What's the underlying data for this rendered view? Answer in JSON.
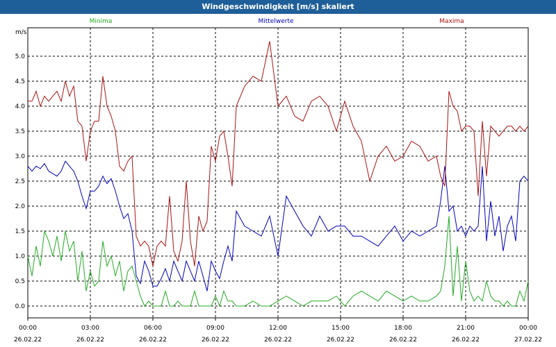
{
  "window": {
    "title": "Windgeschwindigkeit [m/s] skaliert"
  },
  "chart_data": {
    "type": "line",
    "title": "Windgeschwindigkeit [m/s] skaliert",
    "ylabel": "m/s",
    "xlabel": "",
    "ylim": [
      0,
      5.5
    ],
    "grid": true,
    "yticks": [
      "0.0",
      "0.5",
      "1.0",
      "1.5",
      "2.0",
      "2.5",
      "3.0",
      "3.5",
      "4.0",
      "4.5",
      "5.0"
    ],
    "xticks": [
      {
        "time": "00:00",
        "date": "26.02.22"
      },
      {
        "time": "03:00",
        "date": "26.02.22"
      },
      {
        "time": "06:00",
        "date": "26.02.22"
      },
      {
        "time": "09:00",
        "date": "26.02.22"
      },
      {
        "time": "12:00",
        "date": "26.02.22"
      },
      {
        "time": "15:00",
        "date": "26.02.22"
      },
      {
        "time": "18:00",
        "date": "26.02.22"
      },
      {
        "time": "21:00",
        "date": "26.02.22"
      },
      {
        "time": "00:00",
        "date": "27.02.22"
      }
    ],
    "x_hours_range": [
      0,
      24
    ],
    "legend_position": "top",
    "series": [
      {
        "name": "Minima",
        "color": "#22aa22",
        "x": [
          0,
          0.2,
          0.4,
          0.6,
          0.8,
          1.0,
          1.2,
          1.4,
          1.6,
          1.8,
          2.0,
          2.2,
          2.4,
          2.6,
          2.8,
          3.0,
          3.2,
          3.4,
          3.6,
          3.8,
          4.0,
          4.2,
          4.4,
          4.6,
          4.8,
          5.0,
          5.2,
          5.4,
          5.6,
          5.8,
          6.0,
          6.2,
          6.4,
          6.6,
          6.8,
          7.0,
          7.2,
          7.4,
          7.6,
          7.8,
          8.0,
          8.2,
          8.4,
          8.6,
          8.8,
          9.0,
          9.2,
          9.4,
          9.6,
          9.8,
          10.0,
          10.4,
          10.8,
          11.2,
          11.6,
          12.0,
          12.4,
          12.8,
          13.2,
          13.6,
          14.0,
          14.4,
          14.8,
          15.2,
          15.6,
          16.0,
          16.4,
          16.8,
          17.2,
          17.6,
          18.0,
          18.4,
          18.8,
          19.2,
          19.6,
          19.8,
          20.0,
          20.2,
          20.4,
          20.6,
          20.8,
          21.0,
          21.2,
          21.4,
          21.6,
          21.8,
          22.0,
          22.2,
          22.4,
          22.6,
          22.8,
          23.0,
          23.2,
          23.4,
          23.6,
          23.8,
          24.0
        ],
        "values": [
          1.0,
          0.6,
          1.2,
          0.8,
          1.5,
          1.3,
          1.0,
          1.4,
          0.9,
          1.5,
          1.1,
          1.3,
          0.5,
          1.1,
          0.3,
          0.7,
          0.4,
          0.5,
          1.3,
          0.8,
          1.0,
          0.6,
          0.9,
          0.3,
          0.7,
          0.8,
          0.5,
          0.2,
          0.0,
          0.1,
          0.0,
          0.0,
          0.0,
          0.3,
          0.0,
          0.0,
          0.1,
          0.0,
          0.0,
          0.0,
          0.3,
          0.0,
          0.0,
          0.0,
          0.0,
          0.2,
          0.0,
          0.3,
          0.1,
          0.1,
          0.0,
          0.0,
          0.1,
          0.0,
          0.0,
          0.1,
          0.2,
          0.1,
          0.0,
          0.1,
          0.1,
          0.1,
          0.2,
          0.0,
          0.2,
          0.3,
          0.2,
          0.1,
          0.3,
          0.2,
          0.1,
          0.2,
          0.1,
          0.1,
          0.2,
          0.3,
          0.8,
          1.8,
          0.2,
          1.2,
          0.1,
          0.9,
          0.3,
          0.1,
          0.2,
          0.1,
          0.5,
          0.2,
          0.1,
          0.1,
          0.0,
          0.1,
          0.0,
          0.0,
          0.3,
          0.1,
          0.5
        ]
      },
      {
        "name": "Mittelwerte",
        "color": "#0000bb",
        "x": [
          0,
          0.2,
          0.4,
          0.6,
          0.8,
          1.0,
          1.2,
          1.4,
          1.6,
          1.8,
          2.0,
          2.2,
          2.4,
          2.6,
          2.8,
          3.0,
          3.2,
          3.4,
          3.6,
          3.8,
          4.0,
          4.2,
          4.4,
          4.6,
          4.8,
          5.0,
          5.2,
          5.4,
          5.6,
          5.8,
          6.0,
          6.2,
          6.4,
          6.6,
          6.8,
          7.0,
          7.2,
          7.4,
          7.6,
          7.8,
          8.0,
          8.2,
          8.4,
          8.6,
          8.8,
          9.0,
          9.2,
          9.4,
          9.6,
          9.8,
          10.0,
          10.4,
          10.8,
          11.2,
          11.6,
          12.0,
          12.4,
          12.8,
          13.2,
          13.6,
          14.0,
          14.4,
          14.8,
          15.2,
          15.6,
          16.0,
          16.4,
          16.8,
          17.2,
          17.6,
          18.0,
          18.4,
          18.8,
          19.2,
          19.6,
          19.8,
          20.0,
          20.2,
          20.4,
          20.6,
          20.8,
          21.0,
          21.2,
          21.4,
          21.6,
          21.8,
          22.0,
          22.2,
          22.4,
          22.6,
          22.8,
          23.0,
          23.2,
          23.4,
          23.6,
          23.8,
          24.0
        ],
        "values": [
          2.8,
          2.7,
          2.8,
          2.75,
          2.85,
          2.7,
          2.65,
          2.6,
          2.7,
          2.9,
          2.8,
          2.7,
          2.5,
          2.2,
          1.95,
          2.3,
          2.3,
          2.4,
          2.6,
          2.45,
          2.55,
          2.3,
          2.0,
          1.75,
          1.85,
          1.5,
          0.6,
          0.45,
          0.9,
          0.7,
          0.4,
          0.4,
          0.55,
          0.75,
          0.5,
          0.9,
          0.7,
          0.5,
          0.9,
          0.7,
          0.5,
          0.9,
          0.6,
          0.3,
          0.9,
          0.7,
          0.55,
          0.9,
          1.2,
          0.9,
          1.9,
          1.6,
          1.5,
          1.4,
          1.8,
          1.0,
          2.2,
          1.9,
          1.6,
          1.4,
          1.8,
          1.5,
          1.6,
          1.6,
          1.4,
          1.4,
          1.3,
          1.2,
          1.4,
          1.6,
          1.3,
          1.5,
          1.4,
          1.5,
          1.6,
          2.1,
          2.8,
          1.9,
          2.0,
          1.5,
          1.6,
          1.4,
          1.6,
          1.5,
          1.6,
          2.8,
          1.3,
          2.1,
          1.4,
          1.8,
          1.1,
          1.6,
          1.8,
          1.3,
          2.5,
          2.6,
          2.5
        ]
      },
      {
        "name": "Maxima",
        "color": "#aa1111",
        "x": [
          0,
          0.2,
          0.4,
          0.6,
          0.8,
          1.0,
          1.2,
          1.4,
          1.6,
          1.8,
          2.0,
          2.2,
          2.4,
          2.6,
          2.8,
          3.0,
          3.2,
          3.4,
          3.6,
          3.8,
          4.0,
          4.2,
          4.4,
          4.6,
          4.8,
          5.0,
          5.2,
          5.4,
          5.6,
          5.8,
          6.0,
          6.2,
          6.4,
          6.6,
          6.8,
          7.0,
          7.2,
          7.4,
          7.6,
          7.8,
          8.0,
          8.2,
          8.4,
          8.6,
          8.8,
          9.0,
          9.2,
          9.4,
          9.6,
          9.8,
          10.0,
          10.4,
          10.8,
          11.2,
          11.6,
          12.0,
          12.4,
          12.8,
          13.2,
          13.6,
          14.0,
          14.4,
          14.8,
          15.2,
          15.6,
          16.0,
          16.4,
          16.8,
          17.2,
          17.6,
          18.0,
          18.4,
          18.8,
          19.2,
          19.6,
          19.8,
          20.0,
          20.2,
          20.4,
          20.6,
          20.8,
          21.0,
          21.2,
          21.4,
          21.6,
          21.8,
          22.0,
          22.2,
          22.4,
          22.6,
          22.8,
          23.0,
          23.2,
          23.4,
          23.6,
          23.8,
          24.0
        ],
        "values": [
          4.1,
          4.1,
          4.3,
          4.0,
          4.2,
          4.1,
          4.2,
          4.3,
          4.1,
          4.5,
          4.2,
          4.4,
          3.7,
          3.6,
          2.9,
          3.5,
          3.7,
          3.7,
          4.6,
          4.0,
          3.8,
          3.5,
          2.8,
          2.7,
          2.9,
          3.0,
          1.4,
          1.2,
          1.3,
          1.2,
          0.8,
          1.2,
          1.3,
          1.2,
          2.2,
          1.1,
          0.9,
          1.3,
          2.5,
          1.3,
          0.8,
          1.8,
          1.5,
          1.7,
          3.2,
          2.9,
          3.4,
          3.5,
          3.0,
          2.4,
          4.0,
          4.4,
          4.6,
          4.5,
          5.3,
          4.0,
          4.2,
          3.8,
          3.7,
          4.1,
          4.2,
          4.0,
          3.5,
          4.1,
          3.6,
          3.3,
          2.5,
          3.0,
          3.2,
          2.9,
          3.0,
          3.3,
          3.2,
          2.9,
          3.0,
          2.6,
          2.4,
          4.3,
          4.0,
          3.9,
          3.5,
          3.6,
          3.6,
          3.5,
          2.2,
          3.7,
          2.6,
          3.6,
          3.5,
          3.4,
          3.5,
          3.6,
          3.6,
          3.5,
          3.6,
          3.5,
          3.6
        ]
      }
    ]
  }
}
